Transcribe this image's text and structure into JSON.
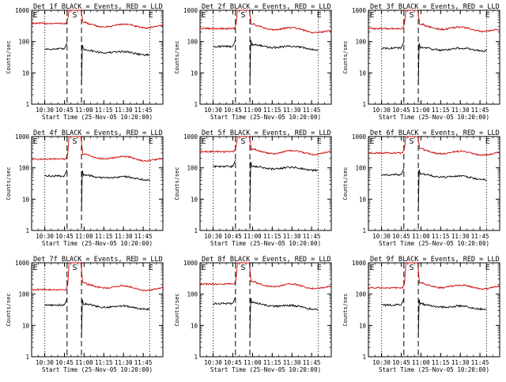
{
  "chart_data": [
    {
      "type": "line",
      "title": "Det 1f BLACK = Events, RED = LLD",
      "xlabel": "Start Time (25-Nov-05 10:20:00)",
      "ylabel": "Counts/sec",
      "yscale": "log",
      "ylim": [
        1,
        1000
      ],
      "y_ticks": [
        "1",
        "10",
        "100",
        "1000"
      ],
      "x_tick_labels": [
        "10:30",
        "10:45",
        "11:00",
        "11:15",
        "11:30",
        "11:45"
      ],
      "x_tick_minutes": [
        10,
        25,
        40,
        55,
        70,
        85
      ],
      "xlim_minutes": [
        0,
        100
      ],
      "dotted_lines_minutes": [
        10,
        90
      ],
      "dashed_lines_minutes": [
        27,
        38
      ],
      "markers": [
        {
          "text": "E",
          "minute": 1
        },
        {
          "text": "S",
          "minute": 31
        },
        {
          "text": "E",
          "minute": 89
        }
      ],
      "series": [
        {
          "color": "#cc0000",
          "levels": {
            "pre": 380,
            "post": 340,
            "end": 300
          }
        },
        {
          "color": "#000000",
          "levels": {
            "pre": 58,
            "post": 52,
            "end": 40
          }
        }
      ]
    },
    {
      "type": "line",
      "title": "Det 2f BLACK = Events, RED = LLD",
      "xlabel": "Start Time (25-Nov-05 10:20:00)",
      "ylabel": "Counts/sec",
      "yscale": "log",
      "ylim": [
        1,
        1000
      ],
      "y_ticks": [
        "1",
        "10",
        "100",
        "1000"
      ],
      "x_tick_labels": [
        "10:30",
        "10:45",
        "11:00",
        "11:15",
        "11:30",
        "11:45"
      ],
      "x_tick_minutes": [
        10,
        25,
        40,
        55,
        70,
        85
      ],
      "xlim_minutes": [
        0,
        100
      ],
      "dotted_lines_minutes": [
        10,
        90
      ],
      "dashed_lines_minutes": [
        27,
        38
      ],
      "markers": [
        {
          "text": "E",
          "minute": 1
        },
        {
          "text": "S",
          "minute": 31
        },
        {
          "text": "E",
          "minute": 89
        }
      ],
      "series": [
        {
          "color": "#cc0000",
          "levels": {
            "pre": 260,
            "post": 300,
            "end": 200
          }
        },
        {
          "color": "#000000",
          "levels": {
            "pre": 70,
            "post": 75,
            "end": 60
          }
        }
      ]
    },
    {
      "type": "line",
      "title": "Det 3f BLACK = Events, RED = LLD",
      "xlabel": "Start Time (25-Nov-05 10:20:00)",
      "ylabel": "Counts/sec",
      "yscale": "log",
      "ylim": [
        1,
        1000
      ],
      "y_ticks": [
        "1",
        "10",
        "100",
        "1000"
      ],
      "x_tick_labels": [
        "10:30",
        "10:45",
        "11:00",
        "11:15",
        "11:30",
        "11:45"
      ],
      "x_tick_minutes": [
        10,
        25,
        40,
        55,
        70,
        85
      ],
      "xlim_minutes": [
        0,
        100
      ],
      "dotted_lines_minutes": [
        10,
        90
      ],
      "dashed_lines_minutes": [
        27,
        38
      ],
      "markers": [
        {
          "text": "E",
          "minute": 1
        },
        {
          "text": "S",
          "minute": 31
        },
        {
          "text": "E",
          "minute": 89
        }
      ],
      "series": [
        {
          "color": "#cc0000",
          "levels": {
            "pre": 260,
            "post": 300,
            "end": 220
          }
        },
        {
          "color": "#000000",
          "levels": {
            "pre": 62,
            "post": 60,
            "end": 55
          }
        }
      ]
    },
    {
      "type": "line",
      "title": "Det 4f BLACK = Events, RED = LLD",
      "xlabel": "Start Time (25-Nov-05 10:20:00)",
      "ylabel": "Counts/sec",
      "yscale": "log",
      "ylim": [
        1,
        1000
      ],
      "y_ticks": [
        "1",
        "10",
        "100",
        "1000"
      ],
      "x_tick_labels": [
        "10:30",
        "10:45",
        "11:00",
        "11:15",
        "11:30",
        "11:45"
      ],
      "x_tick_minutes": [
        10,
        25,
        40,
        55,
        70,
        85
      ],
      "xlim_minutes": [
        0,
        100
      ],
      "dotted_lines_minutes": [
        10,
        90
      ],
      "dashed_lines_minutes": [
        27,
        38
      ],
      "markers": [
        {
          "text": "E",
          "minute": 1
        },
        {
          "text": "S",
          "minute": 31
        },
        {
          "text": "E",
          "minute": 89
        }
      ],
      "series": [
        {
          "color": "#cc0000",
          "levels": {
            "pre": 190,
            "post": 230,
            "end": 180
          }
        },
        {
          "color": "#000000",
          "levels": {
            "pre": 55,
            "post": 55,
            "end": 45
          }
        }
      ]
    },
    {
      "type": "line",
      "title": "Det 5f BLACK = Events, RED = LLD",
      "xlabel": "Start Time (25-Nov-05 10:20:00)",
      "ylabel": "Counts/sec",
      "yscale": "log",
      "ylim": [
        1,
        1000
      ],
      "y_ticks": [
        "1",
        "10",
        "100",
        "1000"
      ],
      "x_tick_labels": [
        "10:30",
        "10:45",
        "11:00",
        "11:15",
        "11:30",
        "11:45"
      ],
      "x_tick_minutes": [
        10,
        25,
        40,
        55,
        70,
        85
      ],
      "xlim_minutes": [
        0,
        100
      ],
      "dotted_lines_minutes": [
        10,
        90
      ],
      "dashed_lines_minutes": [
        27,
        38
      ],
      "markers": [
        {
          "text": "E",
          "minute": 1
        },
        {
          "text": "S",
          "minute": 31
        },
        {
          "text": "E",
          "minute": 89
        }
      ],
      "series": [
        {
          "color": "#cc0000",
          "levels": {
            "pre": 330,
            "post": 330,
            "end": 300
          }
        },
        {
          "color": "#000000",
          "levels": {
            "pre": 110,
            "post": 105,
            "end": 90
          }
        }
      ]
    },
    {
      "type": "line",
      "title": "Det 6f BLACK = Events, RED = LLD",
      "xlabel": "Start Time (25-Nov-05 10:20:00)",
      "ylabel": "Counts/sec",
      "yscale": "log",
      "ylim": [
        1,
        1000
      ],
      "y_ticks": [
        "1",
        "10",
        "100",
        "1000"
      ],
      "x_tick_labels": [
        "10:30",
        "10:45",
        "11:00",
        "11:15",
        "11:30",
        "11:45"
      ],
      "x_tick_minutes": [
        10,
        25,
        40,
        55,
        70,
        85
      ],
      "xlim_minutes": [
        0,
        100
      ],
      "dotted_lines_minutes": [
        10,
        90
      ],
      "dashed_lines_minutes": [
        27,
        38
      ],
      "markers": [
        {
          "text": "E",
          "minute": 1
        },
        {
          "text": "S",
          "minute": 31
        },
        {
          "text": "E",
          "minute": 89
        }
      ],
      "series": [
        {
          "color": "#cc0000",
          "levels": {
            "pre": 300,
            "post": 330,
            "end": 280
          }
        },
        {
          "color": "#000000",
          "levels": {
            "pre": 60,
            "post": 60,
            "end": 45
          }
        }
      ]
    },
    {
      "type": "line",
      "title": "Det 7f BLACK = Events, RED = LLD",
      "xlabel": "Start Time (25-Nov-05 10:20:00)",
      "ylabel": "Counts/sec",
      "yscale": "log",
      "ylim": [
        1,
        1000
      ],
      "y_ticks": [
        "1",
        "10",
        "100",
        "1000"
      ],
      "x_tick_labels": [
        "10:30",
        "10:45",
        "11:00",
        "11:15",
        "11:30",
        "11:45"
      ],
      "x_tick_minutes": [
        10,
        25,
        40,
        55,
        70,
        85
      ],
      "xlim_minutes": [
        0,
        100
      ],
      "dotted_lines_minutes": [
        10,
        90
      ],
      "dashed_lines_minutes": [
        27,
        38
      ],
      "markers": [
        {
          "text": "E",
          "minute": 1
        },
        {
          "text": "S",
          "minute": 31
        },
        {
          "text": "E",
          "minute": 89
        }
      ],
      "series": [
        {
          "color": "#cc0000",
          "levels": {
            "pre": 140,
            "post": 190,
            "end": 140
          }
        },
        {
          "color": "#000000",
          "levels": {
            "pre": 45,
            "post": 45,
            "end": 35
          }
        }
      ]
    },
    {
      "type": "line",
      "title": "Det 8f BLACK = Events, RED = LLD",
      "xlabel": "Start Time (25-Nov-05 10:20:00)",
      "ylabel": "Counts/sec",
      "yscale": "log",
      "ylim": [
        1,
        1000
      ],
      "y_ticks": [
        "1",
        "10",
        "100",
        "1000"
      ],
      "x_tick_labels": [
        "10:30",
        "10:45",
        "11:00",
        "11:15",
        "11:30",
        "11:45"
      ],
      "x_tick_minutes": [
        10,
        25,
        40,
        55,
        70,
        85
      ],
      "xlim_minutes": [
        0,
        100
      ],
      "dotted_lines_minutes": [
        10,
        90
      ],
      "dashed_lines_minutes": [
        27,
        38
      ],
      "markers": [
        {
          "text": "E",
          "minute": 1
        },
        {
          "text": "S",
          "minute": 31
        },
        {
          "text": "E",
          "minute": 89
        }
      ],
      "series": [
        {
          "color": "#cc0000",
          "levels": {
            "pre": 210,
            "post": 210,
            "end": 160
          }
        },
        {
          "color": "#000000",
          "levels": {
            "pre": 50,
            "post": 50,
            "end": 35
          }
        }
      ]
    },
    {
      "type": "line",
      "title": "Det 9f BLACK = Events, RED = LLD",
      "xlabel": "Start Time (25-Nov-05 10:20:00)",
      "ylabel": "Counts/sec",
      "yscale": "log",
      "ylim": [
        1,
        1000
      ],
      "y_ticks": [
        "1",
        "10",
        "100",
        "1000"
      ],
      "x_tick_labels": [
        "10:30",
        "10:45",
        "11:00",
        "11:15",
        "11:30",
        "11:45"
      ],
      "x_tick_minutes": [
        10,
        25,
        40,
        55,
        70,
        85
      ],
      "xlim_minutes": [
        0,
        100
      ],
      "dotted_lines_minutes": [
        10,
        90
      ],
      "dashed_lines_minutes": [
        27,
        38
      ],
      "markers": [
        {
          "text": "E",
          "minute": 1
        },
        {
          "text": "S",
          "minute": 31
        },
        {
          "text": "E",
          "minute": 89
        }
      ],
      "series": [
        {
          "color": "#cc0000",
          "levels": {
            "pre": 160,
            "post": 190,
            "end": 160
          }
        },
        {
          "color": "#000000",
          "levels": {
            "pre": 45,
            "post": 45,
            "end": 35
          }
        }
      ]
    }
  ]
}
